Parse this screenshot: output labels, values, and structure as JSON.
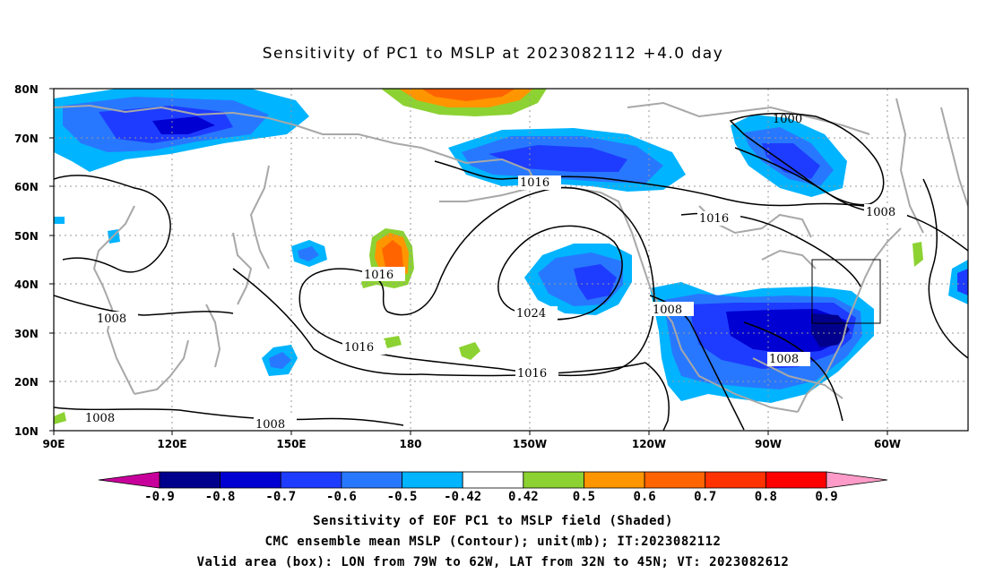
{
  "title": "Sensitivity of PC1 to MSLP at 2023082112 +4.0 day",
  "lat_labels": [
    "80N",
    "70N",
    "60N",
    "50N",
    "40N",
    "30N",
    "20N",
    "10N"
  ],
  "lon_labels": [
    "90E",
    "120E",
    "150E",
    "180",
    "150W",
    "120W",
    "90W",
    "60W"
  ],
  "contour_labels": {
    "c1000": "1000",
    "c1008_ne": "1008",
    "c1016_north": "1016",
    "c1016_east": "1016",
    "c1016_west": "1016",
    "c1024": "1024",
    "c1016_mid": "1016",
    "c1016_south": "1016",
    "c1008_w": "1008",
    "c1008_sw": "1008",
    "c1008_s": "1008",
    "c1008_mexico": "1008",
    "c1008_gulf": "1008"
  },
  "colorbar": {
    "ticks": [
      "-0.9",
      "-0.8",
      "-0.7",
      "-0.6",
      "-0.5",
      "-0.42",
      "0.42",
      "0.5",
      "0.6",
      "0.7",
      "0.8",
      "0.9"
    ],
    "colors": [
      "#c8009b",
      "#00008c",
      "#0000d2",
      "#1e3cff",
      "#2878ff",
      "#00b4ff",
      "#ffffff",
      "#8cd232",
      "#ff9600",
      "#ff6400",
      "#ff3200",
      "#ff0000",
      "#ff9bc8"
    ]
  },
  "captions": {
    "line1": "Sensitivity of EOF PC1 to MSLP field (Shaded)",
    "line2": "CMC ensemble mean MSLP (Contour); unit(mb); IT:2023082112",
    "line3": "Valid area (box): LON from 79W to 62W, LAT from 32N to 45N; VT: 2023082612"
  },
  "valid_box": {
    "lon_from": "79W",
    "lon_to": "62W",
    "lat_from": "32N",
    "lat_to": "45N"
  }
}
